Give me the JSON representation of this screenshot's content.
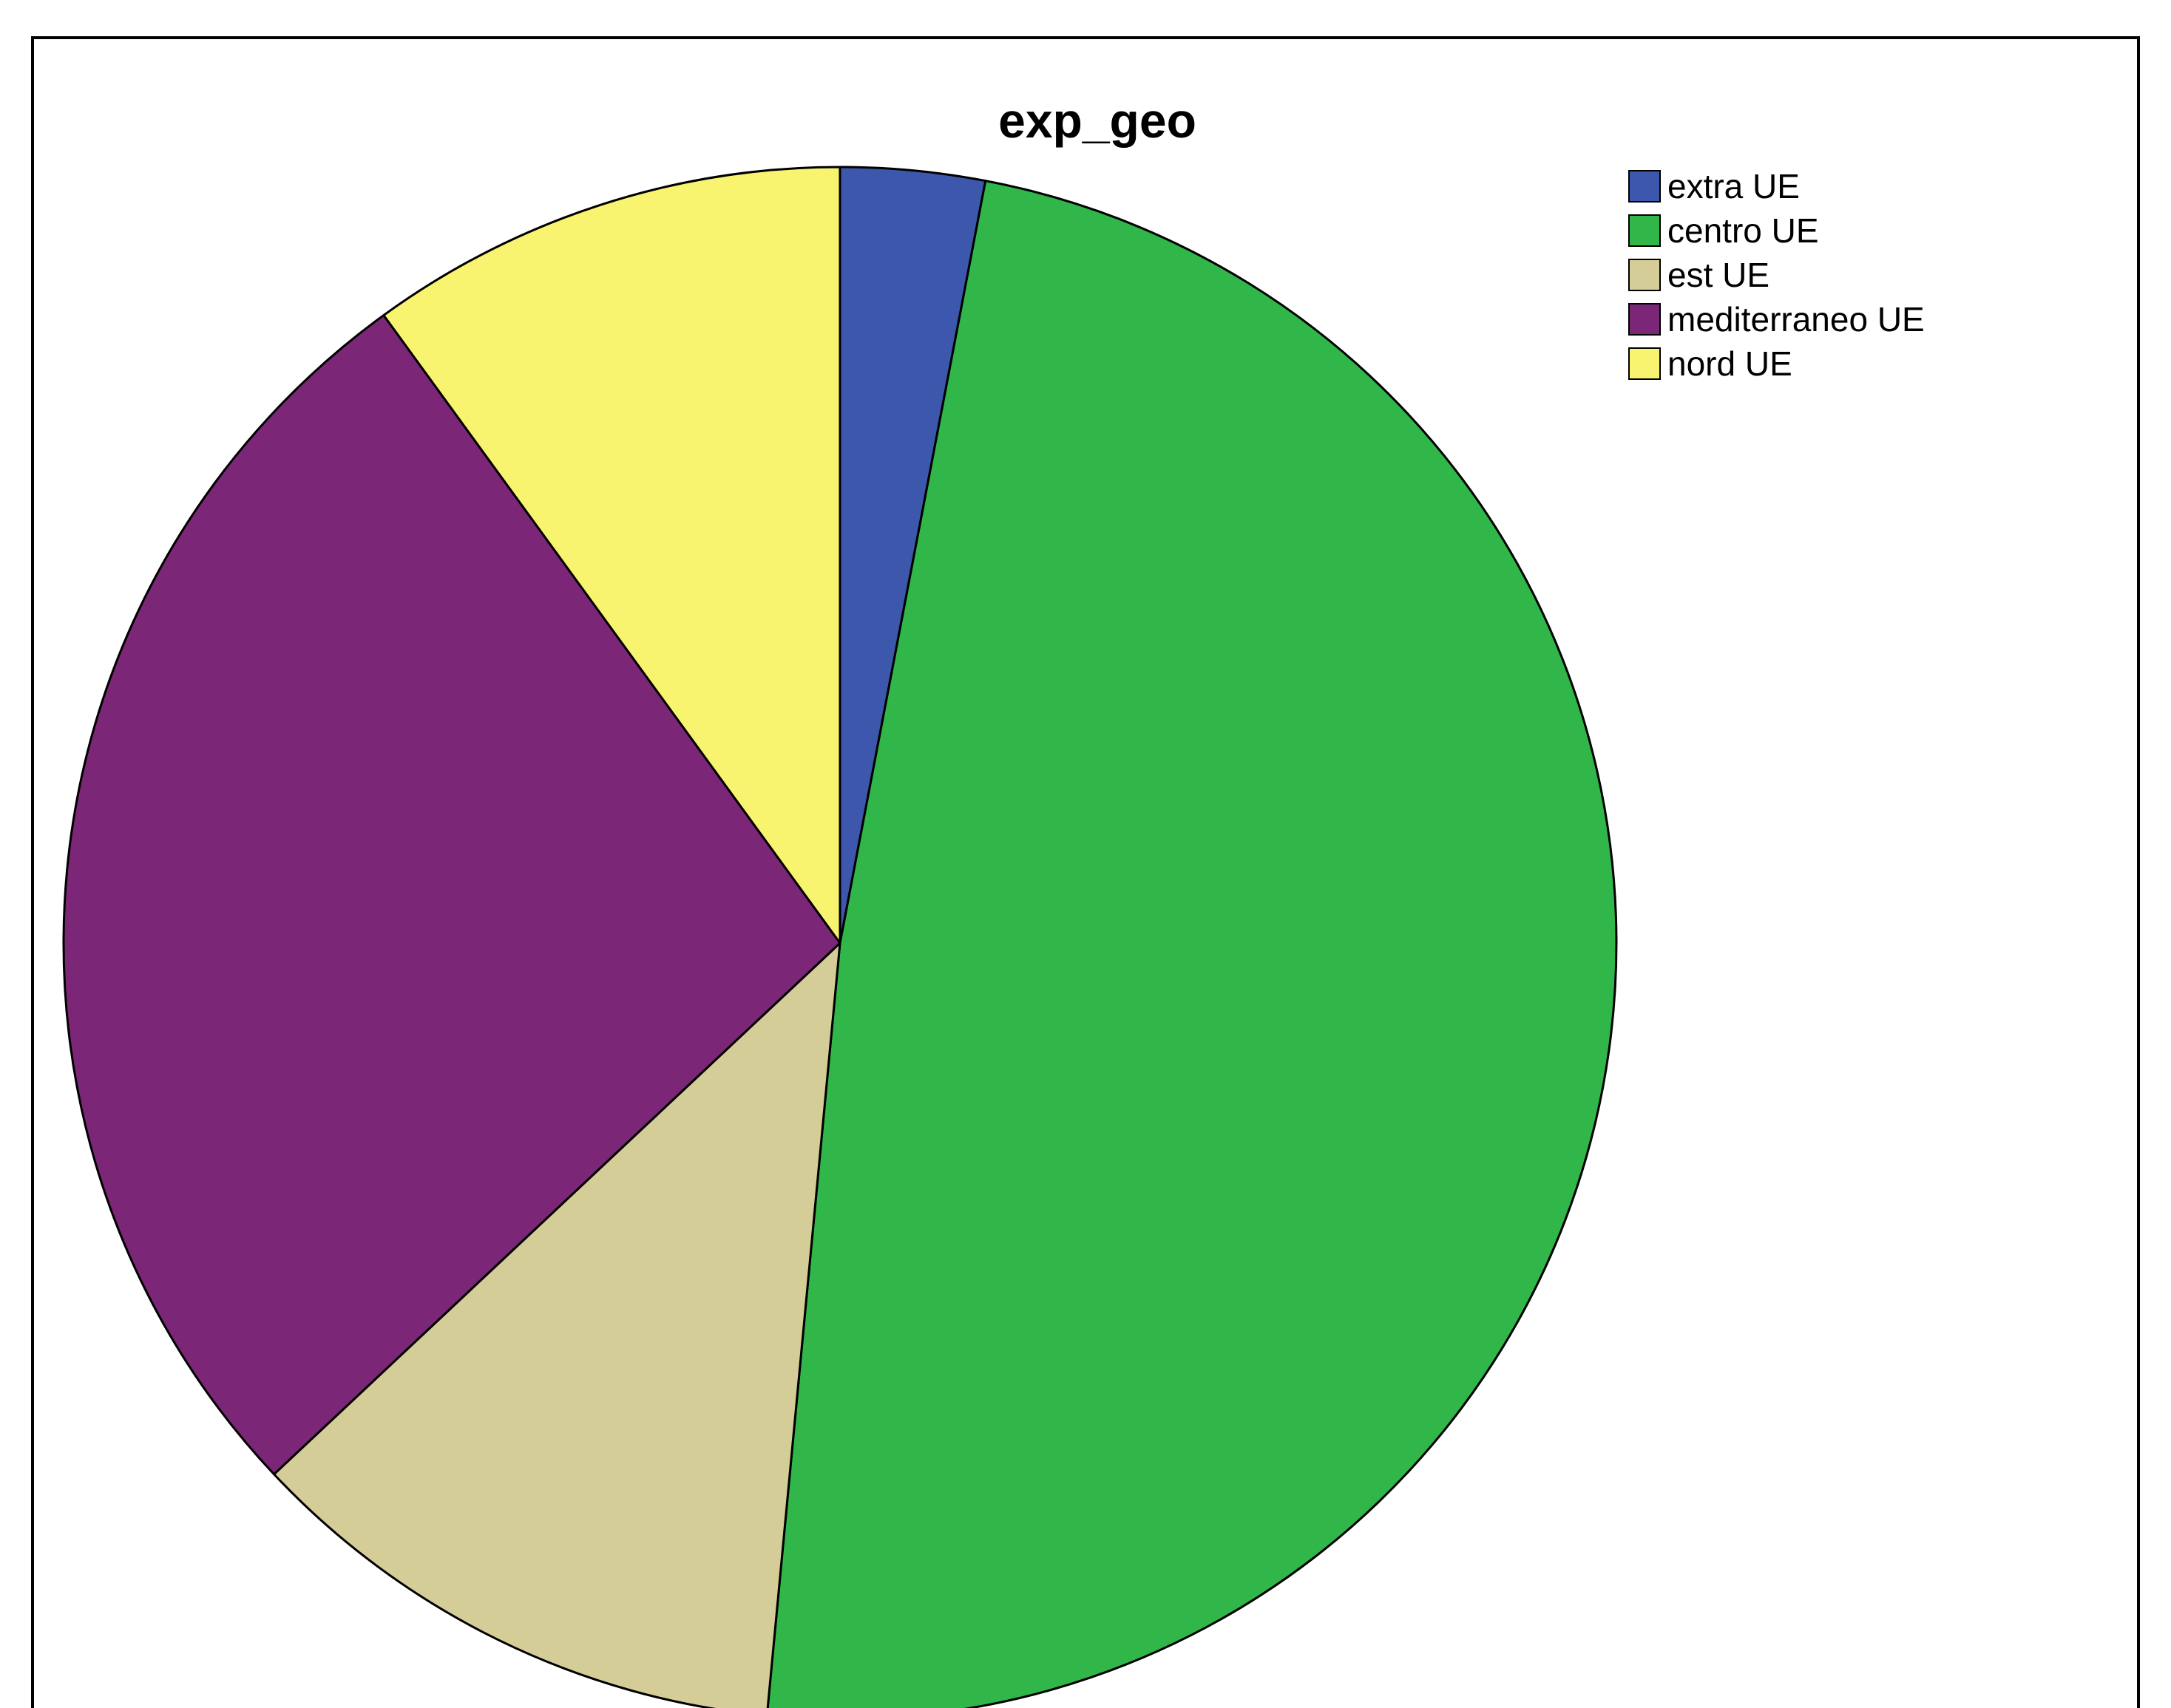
{
  "chart_data": {
    "type": "pie",
    "title": "exp_geo",
    "legend_position": "top-right",
    "start": "top",
    "direction": "clockwise",
    "slices": [
      {
        "label": "extra UE",
        "value": 3.0,
        "color": "#3c57ab"
      },
      {
        "label": "centro UE",
        "value": 48.5,
        "color": "#30b649"
      },
      {
        "label": "est UE",
        "value": 11.5,
        "color": "#d4cd97"
      },
      {
        "label": "mediterraneo UE",
        "value": 27.0,
        "color": "#7b2677"
      },
      {
        "label": "nord UE",
        "value": 10.0,
        "color": "#f8f46f"
      }
    ]
  }
}
